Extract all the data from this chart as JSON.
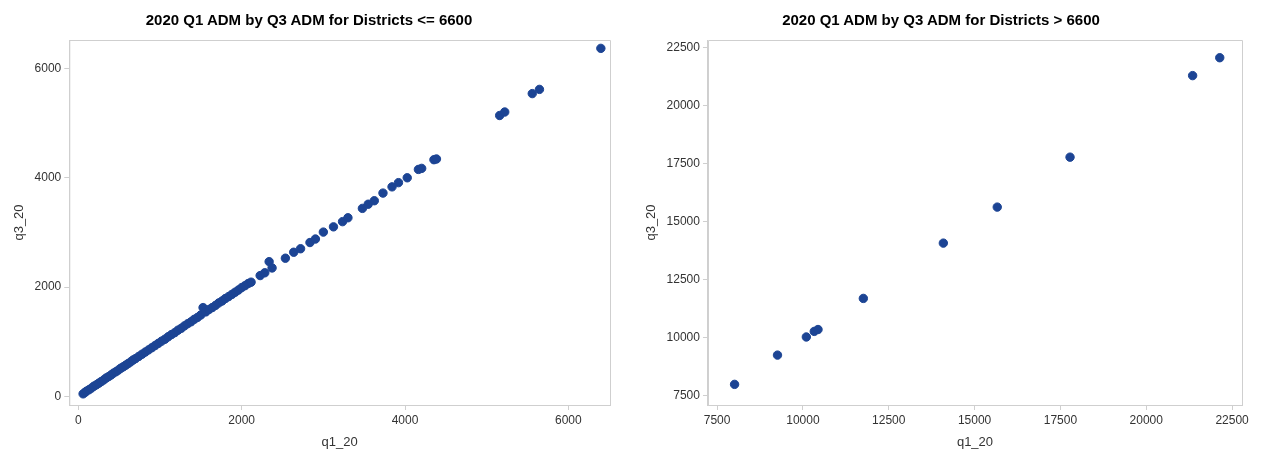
{
  "chart_data": [
    {
      "type": "scatter",
      "title": "2020 Q1 ADM by Q3 ADM for Districts <= 6600",
      "xlabel": "q1_20",
      "ylabel": "q3_20",
      "xlim": [
        -111,
        6510
      ],
      "ylim": [
        -159,
        6522
      ],
      "xticks": [
        0,
        2000,
        4000,
        6000
      ],
      "yticks": [
        0,
        2000,
        4000,
        6000
      ],
      "grid": false,
      "legend": false,
      "marker": "circle",
      "series": [
        {
          "color": "#1c4494",
          "x": [
            58,
            80,
            100,
            130,
            160,
            190,
            220,
            250,
            280,
            310,
            340,
            370,
            400,
            430,
            460,
            490,
            520,
            550,
            580,
            610,
            640,
            670,
            700,
            740,
            780,
            820,
            860,
            900,
            940,
            980,
            1020,
            1060,
            1100,
            1140,
            1180,
            1220,
            1260,
            1300,
            1340,
            1380,
            1420,
            1460,
            1500,
            1527,
            1560,
            1600,
            1640,
            1680,
            1720,
            1760,
            1800,
            1840,
            1880,
            1920,
            1960,
            2000,
            2040,
            2080,
            2115,
            2226,
            2283,
            2336,
            2372,
            2535,
            2637,
            2721,
            2836,
            2903,
            3000,
            3124,
            3235,
            3301,
            3478,
            3549,
            3624,
            3730,
            3841,
            3920,
            4027,
            4164,
            4204,
            4354,
            4385,
            5159,
            5221,
            5558,
            5646,
            6398
          ],
          "values": [
            45,
            70,
            95,
            120,
            150,
            185,
            210,
            240,
            270,
            300,
            335,
            360,
            390,
            425,
            450,
            480,
            515,
            540,
            570,
            600,
            630,
            665,
            690,
            730,
            770,
            810,
            850,
            890,
            930,
            970,
            1010,
            1045,
            1090,
            1130,
            1165,
            1210,
            1245,
            1290,
            1330,
            1365,
            1410,
            1445,
            1490,
            1624,
            1545,
            1590,
            1625,
            1665,
            1710,
            1745,
            1790,
            1825,
            1865,
            1905,
            1945,
            1990,
            2025,
            2065,
            2089,
            2210,
            2261,
            2465,
            2350,
            2528,
            2637,
            2701,
            2815,
            2879,
            3006,
            3102,
            3197,
            3268,
            3440,
            3516,
            3580,
            3720,
            3834,
            3911,
            4000,
            4153,
            4172,
            4331,
            4344,
            5140,
            5204,
            5541,
            5618,
            6369
          ]
        }
      ]
    },
    {
      "type": "scatter",
      "title": "2020 Q1 ADM by Q3 ADM for Districts > 6600",
      "xlabel": "q1_20",
      "ylabel": "q3_20",
      "xlim": [
        7235,
        22788
      ],
      "ylim": [
        7112,
        22823
      ],
      "xticks": [
        7500,
        10000,
        12500,
        15000,
        17500,
        20000,
        22500
      ],
      "yticks": [
        7500,
        10000,
        12500,
        15000,
        17500,
        20000,
        22500
      ],
      "grid": false,
      "legend": false,
      "marker": "circle",
      "series": [
        {
          "color": "#1c4494",
          "x": [
            8010,
            9260,
            10100,
            10330,
            10440,
            11760,
            14090,
            15660,
            17780,
            21350,
            22140
          ],
          "values": [
            8000,
            9260,
            10040,
            10280,
            10360,
            11700,
            14080,
            15630,
            17780,
            21290,
            22060
          ]
        }
      ]
    }
  ]
}
